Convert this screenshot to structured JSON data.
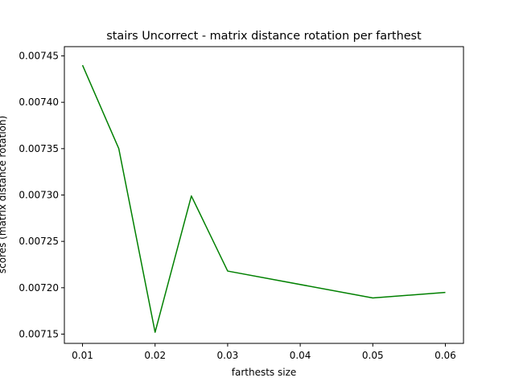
{
  "chart_data": {
    "type": "line",
    "title": "stairs Uncorrect - matrix distance rotation per farthest",
    "xlabel": "farthests size",
    "ylabel": "scores (matrix distance rotation)",
    "xlim": [
      0.0075,
      0.0625
    ],
    "ylim": [
      0.00714,
      0.00746
    ],
    "xticks": [
      "0.01",
      "0.02",
      "0.03",
      "0.04",
      "0.05",
      "0.06"
    ],
    "yticks": [
      "0.00715",
      "0.00720",
      "0.00725",
      "0.00730",
      "0.00735",
      "0.00740",
      "0.00745"
    ],
    "grid": false,
    "series": [
      {
        "color": "#008000",
        "x": [
          0.01,
          0.015,
          0.02,
          0.025,
          0.03,
          0.05,
          0.06
        ],
        "y": [
          0.00744,
          0.00735,
          0.007152,
          0.007299,
          0.007218,
          0.007189,
          0.007195
        ]
      }
    ]
  }
}
